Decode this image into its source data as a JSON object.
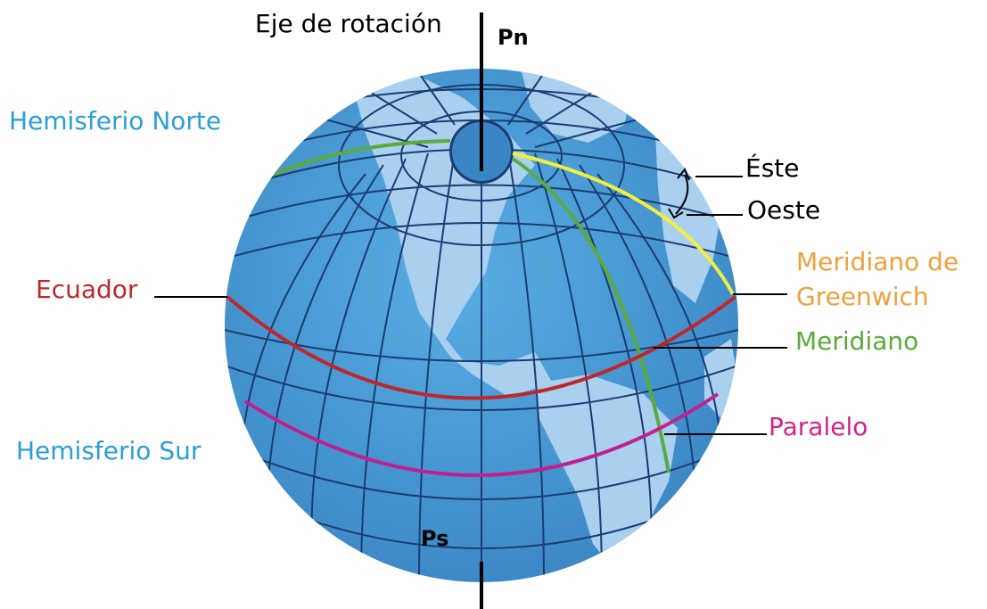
{
  "labels": {
    "axis": "Eje de rotación",
    "north_pole": "Pn",
    "south_pole": "Ps",
    "north_hemisphere": "Hemisferio Norte",
    "south_hemisphere": "Hemisferio Sur",
    "east": "Éste",
    "west": "Oeste",
    "greenwich_line1": "Meridiano de",
    "greenwich_line2": "Greenwich",
    "equator": "Ecuador",
    "meridian": "Meridiano",
    "parallel": "Paralelo"
  },
  "colors": {
    "ocean": "#4a9bd6",
    "land": "#a9d0ef",
    "grid": "#1c3c73",
    "equator": "#c0272d",
    "parallel": "#c1208e",
    "meridian": "#5aaa3c",
    "greenwich": "#f1ee3f",
    "hemisphere_text": "#2a9fd6",
    "greenwich_text": "#f0a03c",
    "meridian_text": "#5aaa3c",
    "equator_text": "#c0272d",
    "parallel_text": "#d4248c",
    "axis": "#000000"
  }
}
